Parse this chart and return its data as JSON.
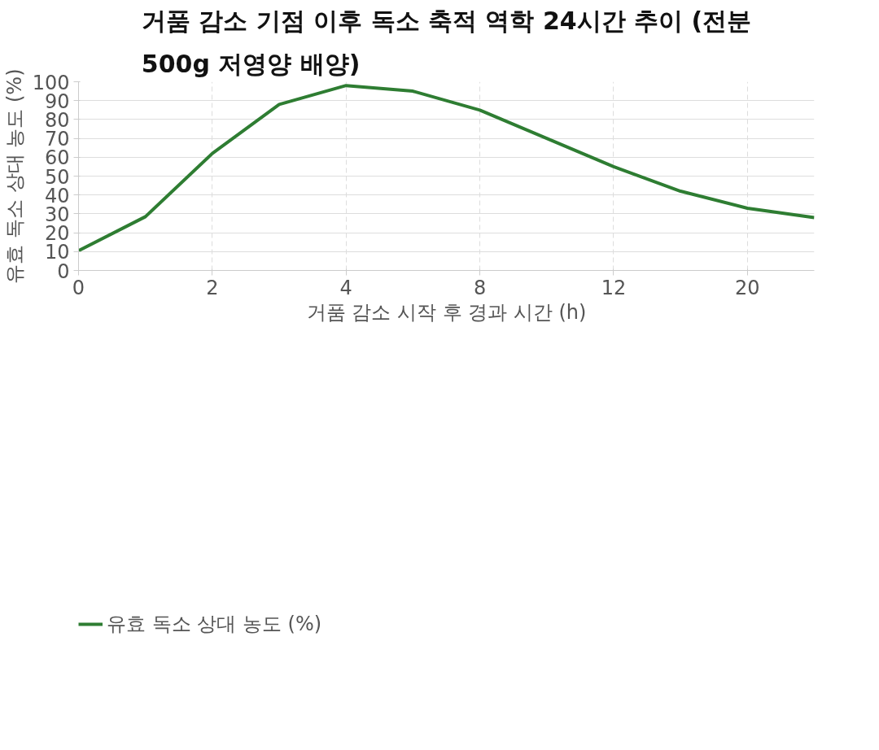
{
  "chart_data": {
    "type": "line",
    "title": "거품 감소 기점 이후 독소 축적 역학 24시간 추이 (전분 500g 저영양 배양)",
    "xlabel": "거품 감소 시작 후 경과 시간 (h)",
    "ylabel": "유효 독소 상대 농도 (%)",
    "categories": [
      "0",
      null,
      "2",
      null,
      "4",
      null,
      "8",
      null,
      "12",
      null,
      "20",
      null
    ],
    "series": [
      {
        "name": "유효 독소 상대 농도 (%)",
        "color": "#2e7d32",
        "values": [
          10.5,
          28.5,
          62,
          88,
          98,
          95,
          85,
          70,
          55,
          42,
          33,
          28
        ]
      }
    ],
    "ylim": [
      0,
      100
    ],
    "yticks": [
      0,
      10,
      20,
      30,
      40,
      50,
      60,
      70,
      80,
      90,
      100
    ],
    "grid": true,
    "legend": "bottom left",
    "marker": "none",
    "line_style": "solid"
  }
}
